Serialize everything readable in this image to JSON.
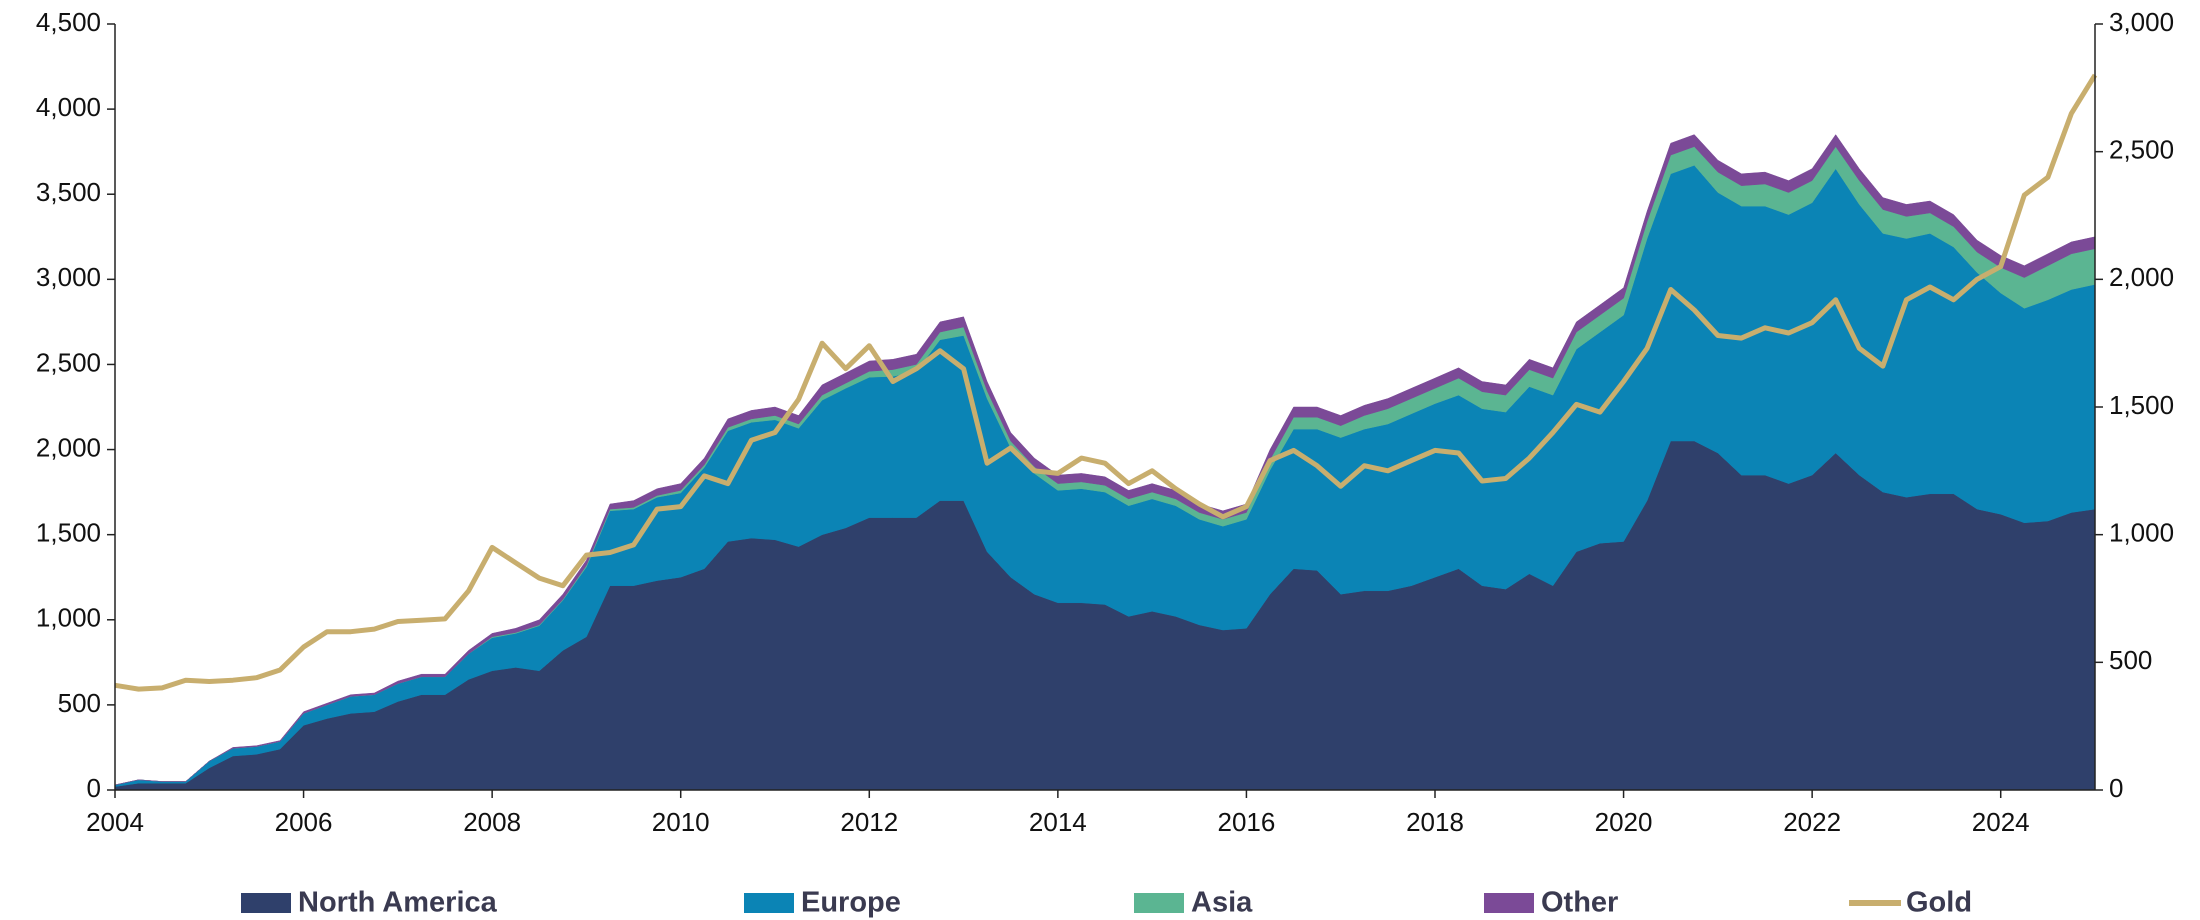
{
  "chart_data": {
    "type": "stacked_area_line",
    "x": [
      2004,
      2004.25,
      2004.5,
      2004.75,
      2005,
      2005.25,
      2005.5,
      2005.75,
      2006,
      2006.25,
      2006.5,
      2006.75,
      2007,
      2007.25,
      2007.5,
      2007.75,
      2008,
      2008.25,
      2008.5,
      2008.75,
      2009,
      2009.25,
      2009.5,
      2009.75,
      2010,
      2010.25,
      2010.5,
      2010.75,
      2011,
      2011.25,
      2011.5,
      2011.75,
      2012,
      2012.25,
      2012.5,
      2012.75,
      2013,
      2013.25,
      2013.5,
      2013.75,
      2014,
      2014.25,
      2014.5,
      2014.75,
      2015,
      2015.25,
      2015.5,
      2015.75,
      2016,
      2016.25,
      2016.5,
      2016.75,
      2017,
      2017.25,
      2017.5,
      2017.75,
      2018,
      2018.25,
      2018.5,
      2018.75,
      2019,
      2019.25,
      2019.5,
      2019.75,
      2020,
      2020.25,
      2020.5,
      2020.75,
      2021,
      2021.25,
      2021.5,
      2021.75,
      2022,
      2022.25,
      2022.5,
      2022.75,
      2023,
      2023.25,
      2023.5,
      2023.75,
      2024,
      2024.25,
      2024.5,
      2024.75,
      2025
    ],
    "series": [
      {
        "name": "North America",
        "color": "#2f406b",
        "values": [
          20,
          40,
          40,
          40,
          130,
          200,
          210,
          240,
          380,
          420,
          450,
          460,
          520,
          560,
          560,
          650,
          700,
          720,
          700,
          820,
          900,
          1200,
          1200,
          1230,
          1250,
          1300,
          1460,
          1480,
          1470,
          1430,
          1500,
          1540,
          1600,
          1600,
          1600,
          1700,
          1700,
          1400,
          1250,
          1150,
          1100,
          1100,
          1090,
          1020,
          1050,
          1020,
          970,
          940,
          950,
          1150,
          1300,
          1290,
          1150,
          1170,
          1170,
          1200,
          1250,
          1300,
          1200,
          1180,
          1270,
          1200,
          1400,
          1450,
          1460,
          1700,
          2050,
          2050,
          1980,
          1850,
          1850,
          1800,
          1850,
          1980,
          1850,
          1750,
          1720,
          1740,
          1740,
          1650,
          1620,
          1570,
          1580,
          1630,
          1650
        ]
      },
      {
        "name": "Europe",
        "color": "#0b84b5",
        "values": [
          10,
          20,
          10,
          10,
          40,
          45,
          45,
          45,
          70,
          80,
          100,
          100,
          105,
          105,
          105,
          150,
          195,
          200,
          265,
          295,
          410,
          440,
          450,
          490,
          495,
          595,
          650,
          680,
          705,
          695,
          790,
          820,
          825,
          830,
          860,
          945,
          970,
          900,
          760,
          710,
          660,
          670,
          660,
          650,
          660,
          650,
          620,
          610,
          640,
          730,
          820,
          830,
          920,
          950,
          980,
          1010,
          1020,
          1020,
          1040,
          1040,
          1100,
          1120,
          1190,
          1240,
          1330,
          1540,
          1570,
          1620,
          1530,
          1580,
          1580,
          1580,
          1600,
          1670,
          1590,
          1520,
          1520,
          1530,
          1450,
          1390,
          1300,
          1260,
          1300,
          1310,
          1320
        ]
      },
      {
        "name": "Asia",
        "color": "#5bb592",
        "values": [
          0,
          0,
          0,
          0,
          0,
          0,
          0,
          0,
          0,
          0,
          0,
          0,
          0,
          0,
          0,
          0,
          5,
          5,
          5,
          5,
          10,
          10,
          10,
          10,
          15,
          15,
          20,
          20,
          25,
          25,
          30,
          30,
          35,
          40,
          40,
          45,
          50,
          45,
          40,
          40,
          40,
          40,
          40,
          40,
          40,
          40,
          40,
          40,
          40,
          60,
          70,
          70,
          70,
          80,
          90,
          90,
          90,
          100,
          100,
          100,
          100,
          100,
          100,
          100,
          100,
          100,
          110,
          110,
          120,
          120,
          130,
          130,
          130,
          130,
          140,
          140,
          130,
          120,
          120,
          120,
          150,
          180,
          200,
          210,
          210
        ]
      },
      {
        "name": "Other",
        "color": "#7b4a97",
        "values": [
          0,
          0,
          0,
          0,
          0,
          5,
          5,
          5,
          10,
          10,
          10,
          10,
          15,
          15,
          15,
          20,
          20,
          25,
          30,
          30,
          30,
          30,
          40,
          40,
          40,
          40,
          50,
          50,
          50,
          50,
          60,
          60,
          60,
          60,
          60,
          60,
          60,
          55,
          50,
          50,
          50,
          50,
          50,
          50,
          50,
          50,
          50,
          50,
          50,
          60,
          60,
          60,
          60,
          60,
          60,
          60,
          60,
          60,
          60,
          60,
          60,
          60,
          60,
          60,
          60,
          60,
          70,
          70,
          70,
          70,
          70,
          70,
          70,
          70,
          70,
          70,
          70,
          70,
          70,
          70,
          70,
          70,
          70,
          70,
          70
        ]
      },
      {
        "name": "Gold",
        "color": "#c8ae6e",
        "axis": "y2",
        "values": [
          410,
          395,
          400,
          430,
          425,
          430,
          440,
          470,
          560,
          620,
          620,
          630,
          660,
          665,
          670,
          780,
          950,
          890,
          830,
          800,
          920,
          930,
          960,
          1100,
          1110,
          1230,
          1200,
          1370,
          1400,
          1530,
          1750,
          1650,
          1740,
          1600,
          1650,
          1720,
          1650,
          1280,
          1340,
          1250,
          1240,
          1300,
          1280,
          1200,
          1250,
          1180,
          1120,
          1070,
          1110,
          1290,
          1330,
          1270,
          1190,
          1270,
          1250,
          1290,
          1330,
          1320,
          1210,
          1220,
          1300,
          1400,
          1510,
          1480,
          1600,
          1730,
          1960,
          1880,
          1780,
          1770,
          1810,
          1790,
          1830,
          1920,
          1730,
          1660,
          1920,
          1970,
          1920,
          2000,
          2050,
          2330,
          2400,
          2650,
          2800
        ]
      }
    ],
    "xlim": [
      2004,
      2025
    ],
    "xticks": [
      2004,
      2006,
      2008,
      2010,
      2012,
      2014,
      2016,
      2018,
      2020,
      2022,
      2024
    ],
    "ylim": [
      0,
      4500
    ],
    "yticks": [
      0,
      500,
      {
        "value": 1000,
        "label": "1,000"
      },
      {
        "value": 1500,
        "label": "1,500"
      },
      {
        "value": 2000,
        "label": "2,000"
      },
      {
        "value": 2500,
        "label": "2,500"
      },
      {
        "value": 3000,
        "label": "3,000"
      },
      {
        "value": 3500,
        "label": "3,500"
      },
      {
        "value": 4000,
        "label": "4,000"
      },
      {
        "value": 4500,
        "label": "4,500"
      }
    ],
    "y2lim": [
      0,
      3000
    ],
    "y2ticks": [
      0,
      500,
      {
        "value": 1000,
        "label": "1,000"
      },
      {
        "value": 1500,
        "label": "1,500"
      },
      {
        "value": 2000,
        "label": "2,000"
      },
      {
        "value": 2500,
        "label": "2,500"
      },
      {
        "value": 3000,
        "label": "3,000"
      }
    ],
    "legend": "bottom"
  }
}
